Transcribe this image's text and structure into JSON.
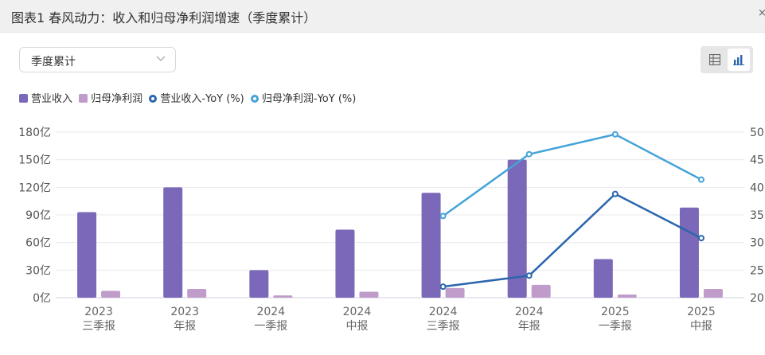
{
  "window": {
    "title": "图表1 春风动力：收入和归母净利润增速（季度累计）",
    "close_glyph": "×"
  },
  "controls": {
    "period_select": "季度累计",
    "view_modes": [
      "table",
      "chart"
    ],
    "active_view": "chart"
  },
  "colors": {
    "revenue_bar": "#7b68b8",
    "profit_bar": "#c09ccb",
    "revenue_yoy_line": "#2b66ad",
    "profit_yoy_line": "#45a3d9",
    "grid": "#e8e8ee"
  },
  "chart_data": {
    "type": "bar",
    "categories": [
      [
        "2023",
        "三季报"
      ],
      [
        "2023",
        "年报"
      ],
      [
        "2024",
        "一季报"
      ],
      [
        "2024",
        "中报"
      ],
      [
        "2024",
        "三季报"
      ],
      [
        "2024",
        "年报"
      ],
      [
        "2025",
        "一季报"
      ],
      [
        "2025",
        "中报"
      ]
    ],
    "series": [
      {
        "name": "营业收入",
        "kind": "bar",
        "axis": "left",
        "values": [
          93,
          120,
          30,
          74,
          114,
          150,
          42,
          98
        ]
      },
      {
        "name": "归母净利润",
        "kind": "bar",
        "axis": "left",
        "values": [
          7.5,
          9.5,
          2.5,
          6.5,
          10.5,
          14,
          3.5,
          9.5
        ]
      },
      {
        "name": "营业收入-YoY (%)",
        "kind": "line",
        "axis": "right",
        "values": [
          null,
          null,
          null,
          null,
          22,
          24,
          38.8,
          30.8
        ]
      },
      {
        "name": "归母净利润-YoY (%)",
        "kind": "line",
        "axis": "right",
        "values": [
          null,
          null,
          null,
          null,
          34.8,
          46,
          49.6,
          41.4
        ]
      }
    ],
    "y_left": {
      "range": [
        0,
        180
      ],
      "ticks": [
        "0亿",
        "30亿",
        "60亿",
        "90亿",
        "120亿",
        "150亿",
        "180亿"
      ]
    },
    "y_right": {
      "range": [
        20,
        50
      ],
      "ticks": [
        "20",
        "25",
        "30",
        "35",
        "40",
        "45",
        "50"
      ]
    },
    "grid": true,
    "legend_position": "top-left"
  }
}
